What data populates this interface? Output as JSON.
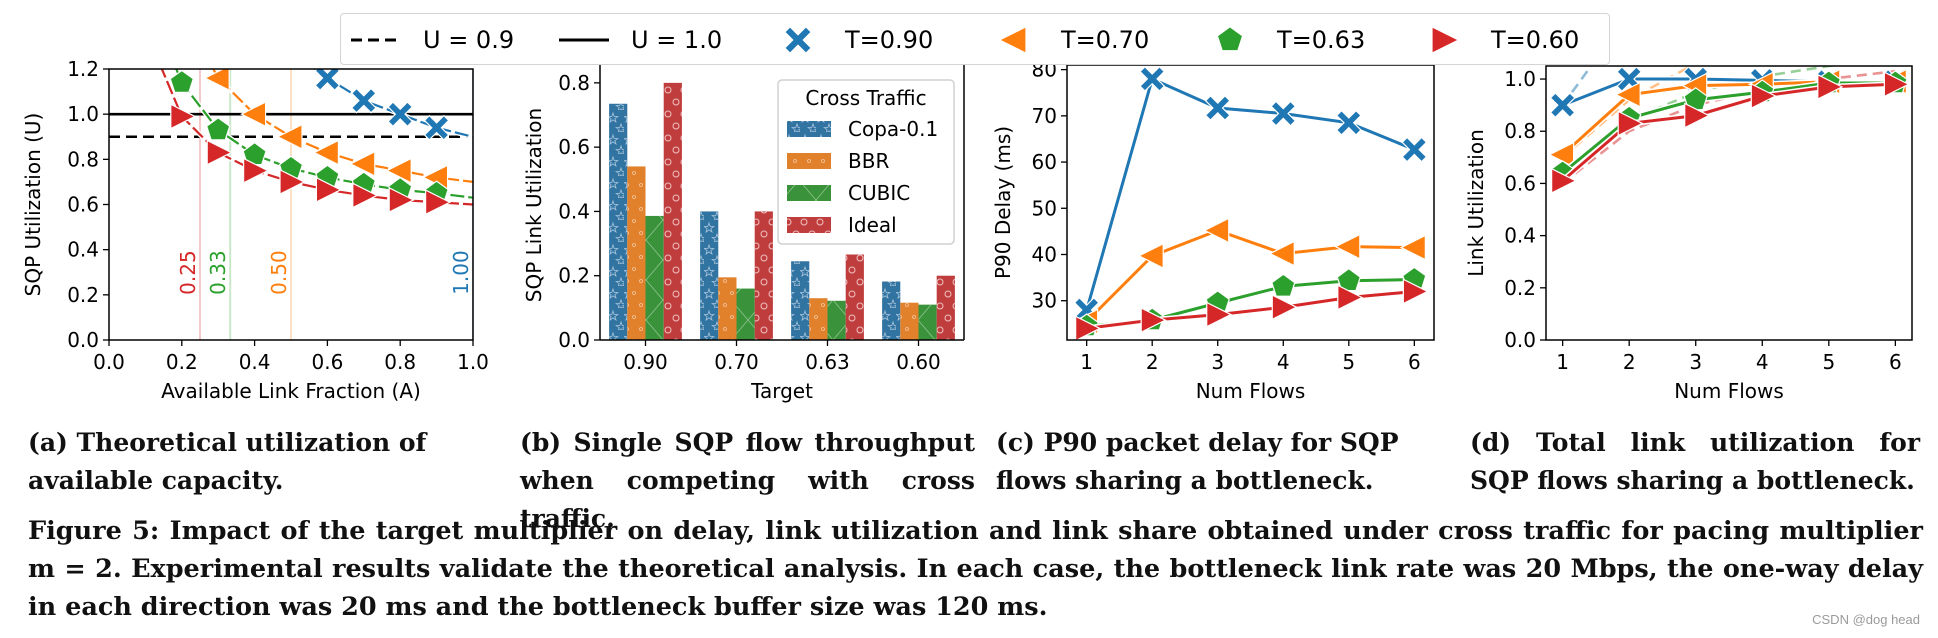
{
  "legend": {
    "items": [
      {
        "label": "U = 0.9",
        "kind": "dashed-line",
        "color": "#000000"
      },
      {
        "label": "U = 1.0",
        "kind": "solid-line",
        "color": "#000000"
      },
      {
        "label": "T=0.90",
        "kind": "x-marker",
        "color": "#1f77b4"
      },
      {
        "label": "T=0.70",
        "kind": "left-triangle-marker",
        "color": "#ff7f0e"
      },
      {
        "label": "T=0.63",
        "kind": "pentagon-marker",
        "color": "#2ca02c"
      },
      {
        "label": "T=0.60",
        "kind": "right-triangle-marker",
        "color": "#d62728"
      }
    ]
  },
  "colors": {
    "t090": "#1f77b4",
    "t070": "#ff7f0e",
    "t063": "#2ca02c",
    "t060": "#d62728",
    "bbr_bar": "#e1812c",
    "copa_bar": "#3274a1",
    "cubic_bar": "#3a923a",
    "ideal_bar": "#c03d3e"
  },
  "chart_data": [
    {
      "id": "a",
      "type": "line",
      "title": "",
      "xlabel": "Available Link Fraction (A)",
      "ylabel": "SQP Utilization (U)",
      "xlim": [
        0.0,
        1.0
      ],
      "ylim": [
        0.0,
        1.2
      ],
      "xticks": [
        "0.0",
        "0.2",
        "0.4",
        "0.6",
        "0.8",
        "1.0"
      ],
      "yticks": [
        "0.0",
        "0.2",
        "0.4",
        "0.6",
        "0.8",
        "1.0",
        "1.2"
      ],
      "grid": false,
      "hlines": [
        {
          "y": 1.0,
          "style": "solid",
          "label": "U = 1.0"
        },
        {
          "y": 0.9,
          "style": "dashed",
          "label": "U = 0.9"
        }
      ],
      "vlines": [
        {
          "x": 0.25,
          "label": "0.25",
          "color": "#d62728"
        },
        {
          "x": 0.333,
          "label": "0.33",
          "color": "#2ca02c"
        },
        {
          "x": 0.5,
          "label": "0.50",
          "color": "#ff7f0e"
        },
        {
          "x": 1.0,
          "label": "1.00",
          "color": "#1f77b4"
        }
      ],
      "series": [
        {
          "name": "T=0.90",
          "marker": "x",
          "color": "#1f77b4",
          "x": [
            0.55,
            0.6,
            0.7,
            0.8,
            0.9,
            1.0
          ],
          "y": [
            1.22,
            1.16,
            1.06,
            1.0,
            0.94,
            0.9
          ],
          "marker_x": [
            0.6,
            0.7,
            0.8,
            0.9
          ]
        },
        {
          "name": "T=0.70",
          "marker": "left-triangle",
          "color": "#ff7f0e",
          "x": [
            0.28,
            0.3,
            0.4,
            0.5,
            0.6,
            0.7,
            0.8,
            0.9,
            1.0
          ],
          "y": [
            1.22,
            1.16,
            1.0,
            0.9,
            0.83,
            0.78,
            0.75,
            0.72,
            0.7
          ],
          "marker_x": [
            0.3,
            0.4,
            0.5,
            0.6,
            0.7,
            0.8,
            0.9
          ]
        },
        {
          "name": "T=0.63",
          "marker": "pentagon",
          "color": "#2ca02c",
          "x": [
            0.18,
            0.2,
            0.3,
            0.4,
            0.5,
            0.6,
            0.7,
            0.8,
            0.9,
            1.0
          ],
          "y": [
            1.22,
            1.14,
            0.93,
            0.82,
            0.76,
            0.72,
            0.69,
            0.665,
            0.65,
            0.63
          ],
          "marker_x": [
            0.2,
            0.3,
            0.4,
            0.5,
            0.6,
            0.7,
            0.8,
            0.9
          ]
        },
        {
          "name": "T=0.60",
          "marker": "right-triangle",
          "color": "#d62728",
          "x": [
            0.14,
            0.2,
            0.3,
            0.4,
            0.5,
            0.6,
            0.7,
            0.8,
            0.9,
            1.0
          ],
          "y": [
            1.22,
            0.99,
            0.83,
            0.75,
            0.7,
            0.665,
            0.64,
            0.62,
            0.61,
            0.6
          ],
          "marker_x": [
            0.2,
            0.3,
            0.4,
            0.5,
            0.6,
            0.7,
            0.8,
            0.9
          ]
        }
      ]
    },
    {
      "id": "b",
      "type": "bar",
      "title": "",
      "xlabel": "Target",
      "ylabel": "SQP Link Utilization",
      "ylim": [
        0.0,
        0.84
      ],
      "yticks": [
        "0.0",
        "0.2",
        "0.4",
        "0.6",
        "0.8"
      ],
      "categories": [
        "0.90",
        "0.70",
        "0.63",
        "0.60"
      ],
      "legend_title": "Cross Traffic",
      "legend_position": "top-right",
      "series": [
        {
          "name": "Copa-0.1",
          "color": "#3274a1",
          "hatch": "stars",
          "values": [
            0.735,
            0.4,
            0.245,
            0.182
          ]
        },
        {
          "name": "BBR",
          "color": "#e1812c",
          "hatch": "small-dots",
          "values": [
            0.54,
            0.195,
            0.13,
            0.116
          ]
        },
        {
          "name": "CUBIC",
          "color": "#3a923a",
          "hatch": "crosses",
          "values": [
            0.386,
            0.16,
            0.122,
            0.11
          ]
        },
        {
          "name": "Ideal",
          "color": "#c03d3e",
          "hatch": "circles",
          "values": [
            0.8,
            0.4,
            0.266,
            0.2
          ]
        }
      ]
    },
    {
      "id": "c",
      "type": "line",
      "title": "",
      "xlabel": "Num Flows",
      "ylabel": "P90 Delay (ms)",
      "xlim": [
        0.7,
        6.3
      ],
      "ylim": [
        21.5,
        81
      ],
      "xticks": [
        "1",
        "2",
        "3",
        "4",
        "5",
        "6"
      ],
      "yticks": [
        "30",
        "40",
        "50",
        "60",
        "70",
        "80"
      ],
      "x": [
        1,
        2,
        3,
        4,
        5,
        6
      ],
      "series": [
        {
          "name": "T=0.90",
          "marker": "x",
          "color": "#1f77b4",
          "values": [
            28.0,
            78.0,
            71.7,
            70.5,
            68.5,
            62.7
          ]
        },
        {
          "name": "T=0.70",
          "marker": "left-triangle",
          "color": "#ff7f0e",
          "values": [
            25.5,
            39.7,
            45.2,
            40.2,
            41.7,
            41.5
          ]
        },
        {
          "name": "T=0.63",
          "marker": "pentagon",
          "color": "#2ca02c",
          "values": [
            24.5,
            25.8,
            29.5,
            33.1,
            34.3,
            34.6
          ]
        },
        {
          "name": "T=0.60",
          "marker": "right-triangle",
          "color": "#d62728",
          "values": [
            24.0,
            25.8,
            27.0,
            28.6,
            30.7,
            32.0
          ]
        }
      ]
    },
    {
      "id": "d",
      "type": "line",
      "title": "",
      "xlabel": "Num Flows",
      "ylabel": "Link Utilization",
      "xlim": [
        0.75,
        6.25
      ],
      "ylim": [
        0.0,
        1.05
      ],
      "xticks": [
        "1",
        "2",
        "3",
        "4",
        "5",
        "6"
      ],
      "yticks": [
        "0.0",
        "0.2",
        "0.4",
        "0.6",
        "0.8",
        "1.0"
      ],
      "x": [
        1,
        2,
        3,
        4,
        5,
        6
      ],
      "series": [
        {
          "name": "T=0.90",
          "marker": "x",
          "color": "#1f77b4",
          "values": [
            0.9,
            1.0,
            1.0,
            0.995,
            0.99,
            0.99
          ],
          "theory": [
            0.9,
            1.25,
            1.4,
            1.45,
            1.5,
            1.55
          ]
        },
        {
          "name": "T=0.70",
          "marker": "left-triangle",
          "color": "#ff7f0e",
          "values": [
            0.71,
            0.94,
            0.975,
            0.98,
            0.99,
            0.99
          ],
          "theory": [
            0.7,
            0.92,
            1.06,
            1.12,
            1.16,
            1.18
          ]
        },
        {
          "name": "T=0.63",
          "marker": "pentagon",
          "color": "#2ca02c",
          "values": [
            0.64,
            0.85,
            0.92,
            0.95,
            0.985,
            0.985
          ],
          "theory": [
            0.63,
            0.84,
            0.95,
            1.01,
            1.05,
            1.08
          ]
        },
        {
          "name": "T=0.60",
          "marker": "right-triangle",
          "color": "#d62728",
          "values": [
            0.61,
            0.83,
            0.86,
            0.935,
            0.97,
            0.98
          ],
          "theory": [
            0.6,
            0.8,
            0.9,
            0.96,
            1.0,
            1.03
          ]
        }
      ]
    }
  ],
  "captions": {
    "a": "(a) Theoretical utilization of available capacity.",
    "b": "(b) Single SQP flow throughput when competing with cross traffic.",
    "c": "(c) P90 packet delay for SQP flows sharing a bottleneck.",
    "d": "(d) Total link utilization for SQP flows sharing a bottleneck.",
    "main": "Figure 5: Impact of the target multiplier on delay, link utilization and link share obtained under cross traffic for pacing multiplier m = 2. Experimental results validate the theoretical analysis. In each case, the bottleneck link rate was 20 Mbps, the one-way delay in each direction was 20 ms and the bottleneck buffer size was 120 ms."
  },
  "watermark": "CSDN @dog head"
}
